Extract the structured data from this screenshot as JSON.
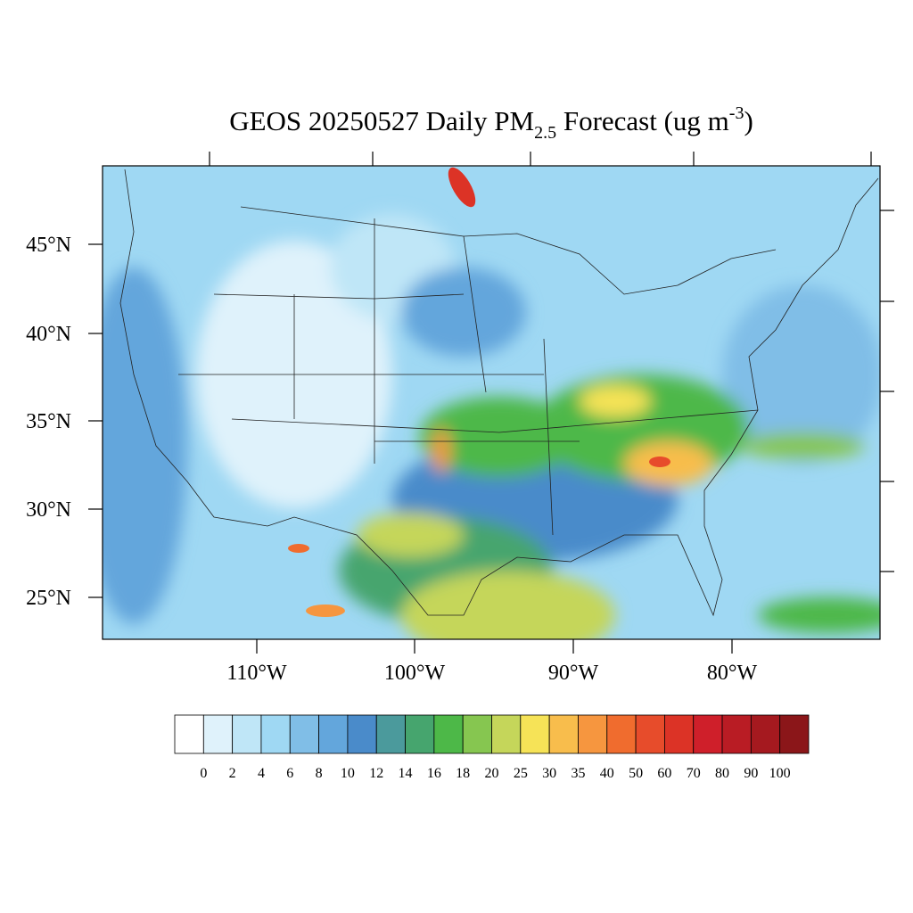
{
  "title": {
    "main": "GEOS 20250527 Daily PM",
    "sub": "2.5",
    "rest": " Forecast (ug m",
    "sup": "-3",
    "close": ")"
  },
  "latitude_labels": [
    "45°N",
    "40°N",
    "35°N",
    "30°N",
    "25°N"
  ],
  "longitude_labels": [
    "110°W",
    "100°W",
    "90°W",
    "80°W"
  ],
  "colorbar": {
    "colors": [
      "#ffffff",
      "#dff2fb",
      "#bfe6f7",
      "#9fd8f3",
      "#80bee7",
      "#63a6dc",
      "#4a8bca",
      "#4b9a9c",
      "#46a56e",
      "#4db848",
      "#86c650",
      "#c5d65a",
      "#f6e357",
      "#f8bd4c",
      "#f6963f",
      "#f06c2e",
      "#e74c2b",
      "#dc3326",
      "#cf1f2a",
      "#b91c24",
      "#a5191f",
      "#8b1619"
    ],
    "labels": [
      0,
      2,
      4,
      6,
      8,
      10,
      12,
      14,
      16,
      18,
      20,
      25,
      30,
      35,
      40,
      50,
      60,
      70,
      80,
      90,
      100
    ]
  }
}
